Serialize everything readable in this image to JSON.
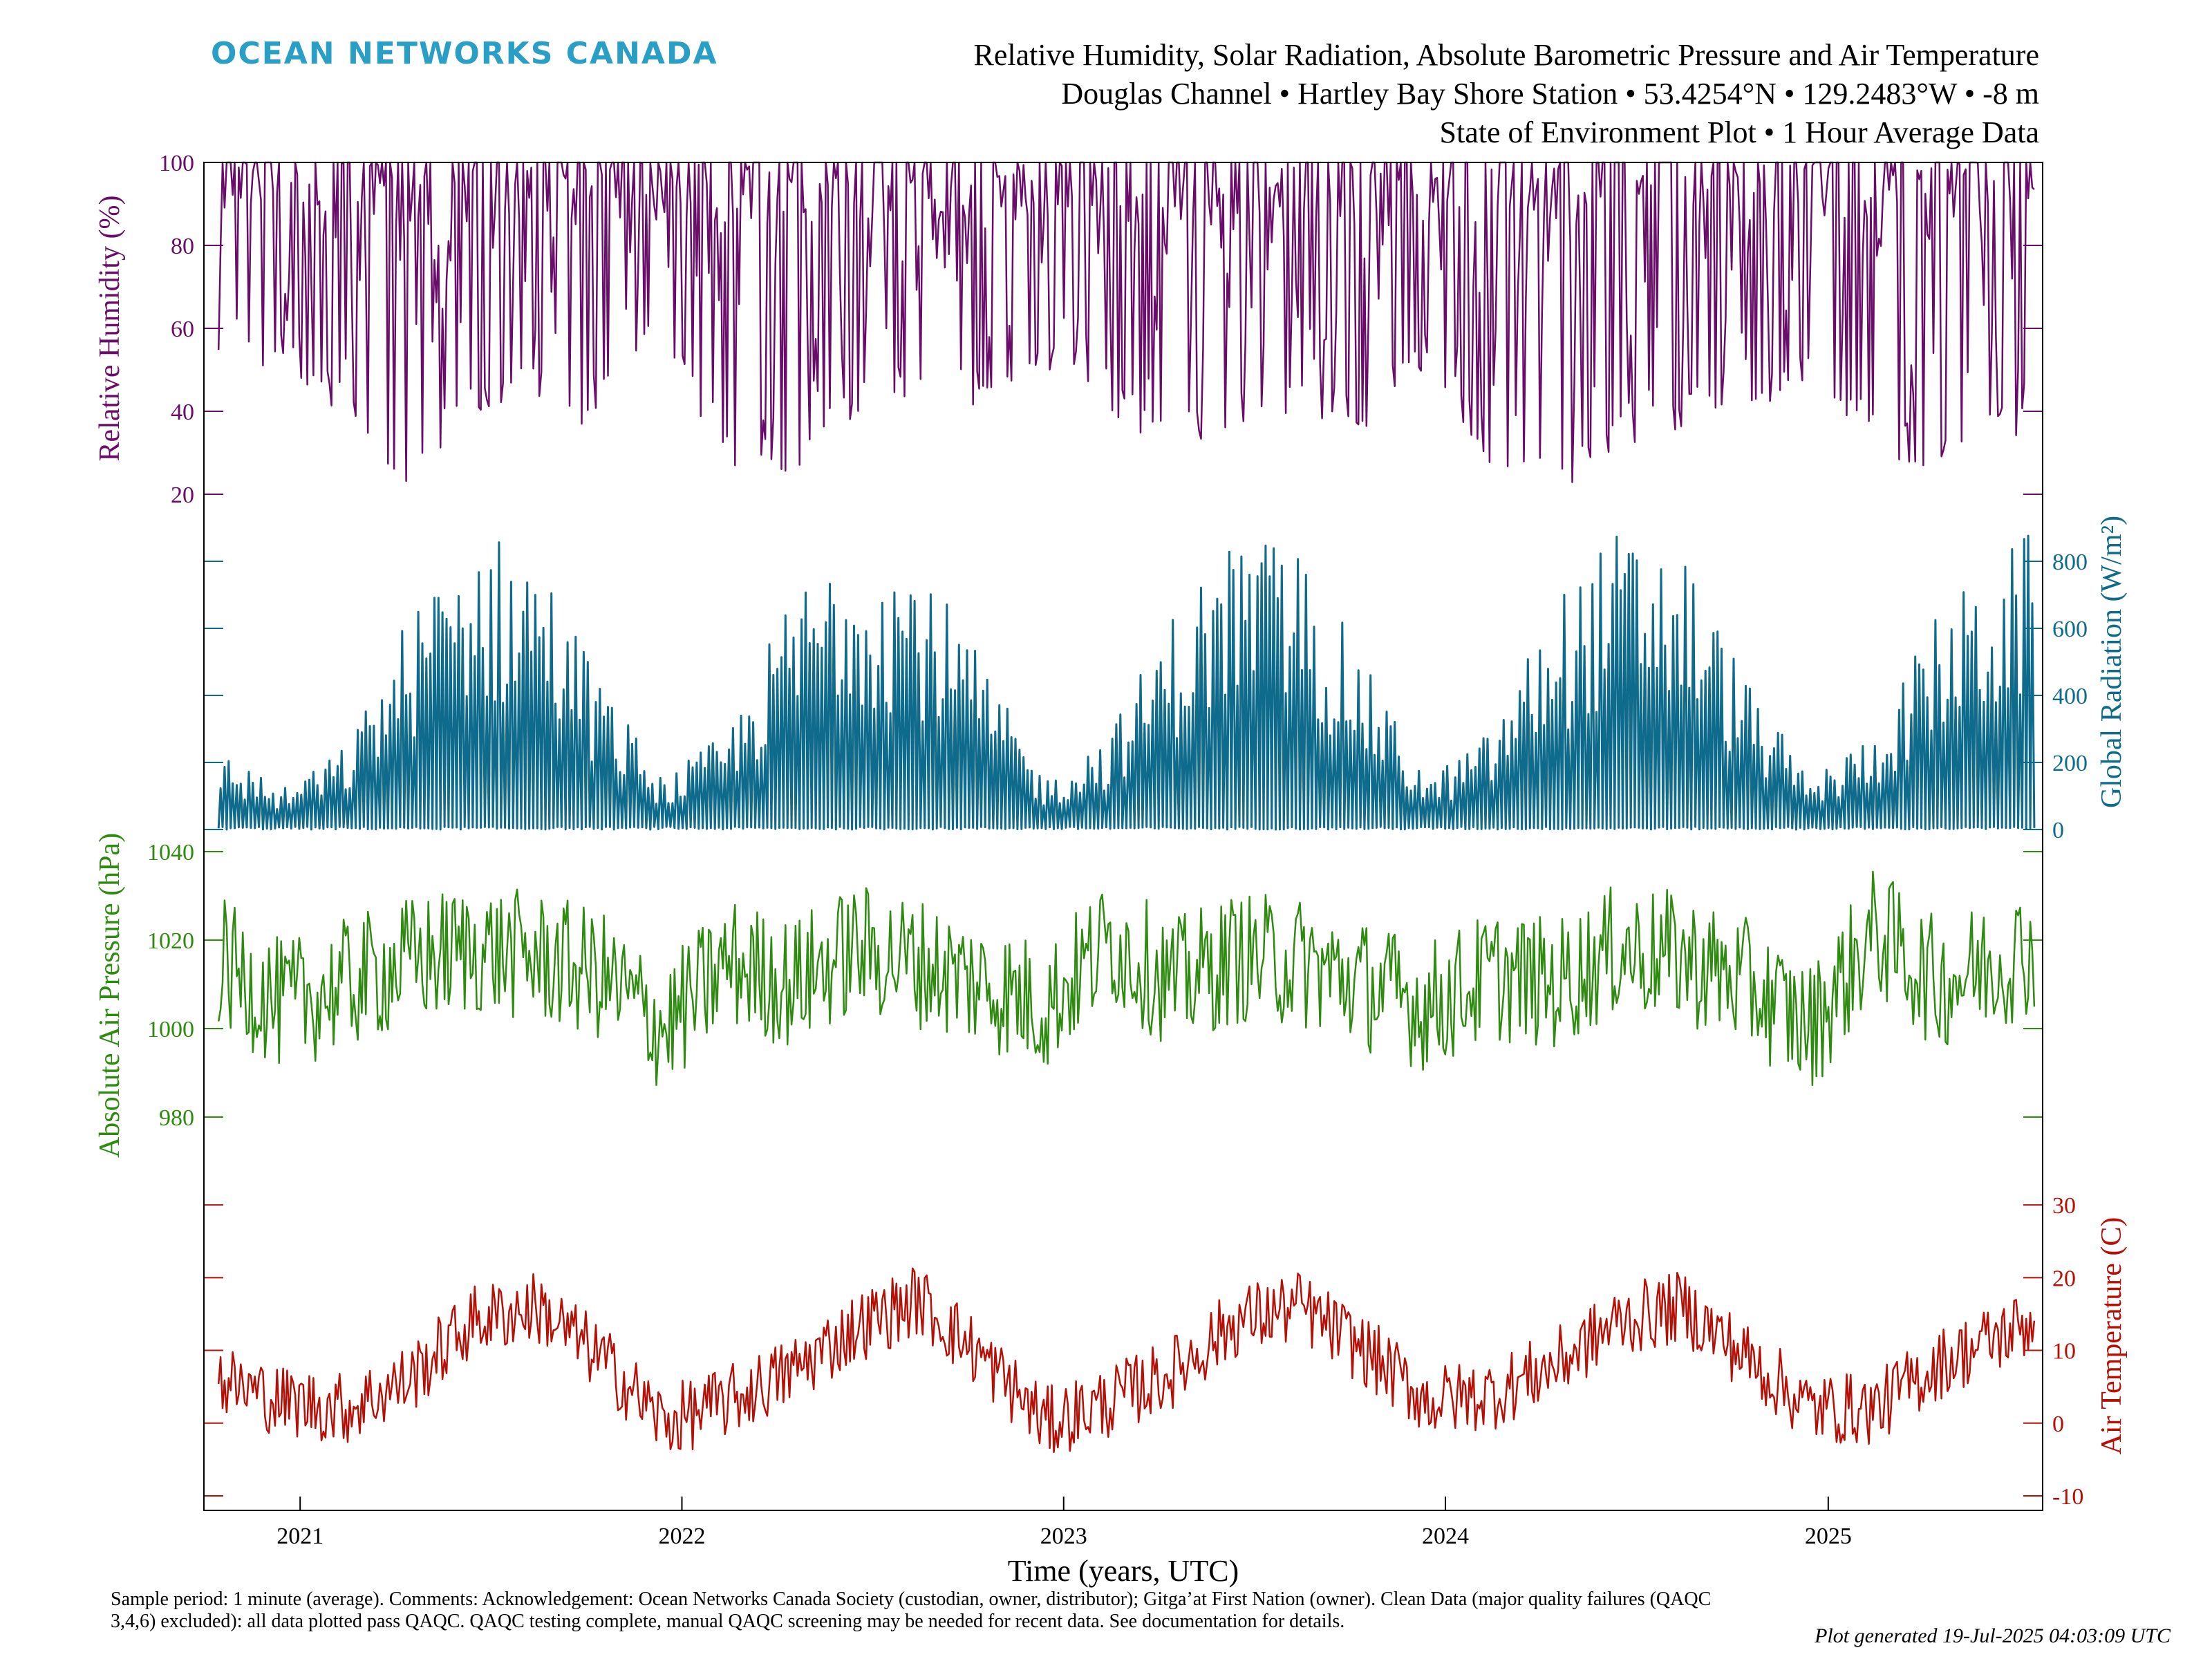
{
  "header": {
    "logo_text": "OCEAN NETWORKS CANADA",
    "title_line1": "Relative Humidity, Solar Radiation, Absolute Barometric Pressure and Air Temperature",
    "title_line2": "Douglas Channel • Hartley Bay Shore Station • 53.4254°N • 129.2483°W • -8 m",
    "title_line3": "State of Environment Plot • 1 Hour Average Data"
  },
  "footer": {
    "comment": "Sample period: 1 minute (average). Comments: Acknowledgement: Ocean Networks Canada Society (custodian, owner, distributor); Gitga’at First Nation (owner). Clean Data (major quality failures (QAQC 3,4,6) excluded): all data plotted pass QAQC. QAQC testing complete, manual QAQC screening may be needed for recent data. See documentation for details.",
    "generated": "Plot generated 19-Jul-2025 04:03:09 UTC"
  },
  "chart_data": [
    {
      "type": "line",
      "ylabel": "Relative Humidity (%)",
      "ylim": [
        20,
        100
      ],
      "yticks": [
        20,
        40,
        60,
        80,
        100
      ],
      "axis_side": "left",
      "color": "#6a0d6a",
      "x": [
        "2020-10-15",
        "2020-12-01",
        "2021-02-01",
        "2021-04-15",
        "2021-06-01",
        "2021-08-01",
        "2021-10-01",
        "2021-12-15",
        "2022-02-15",
        "2022-04-15",
        "2022-06-01",
        "2022-08-15",
        "2022-10-15",
        "2022-12-15",
        "2023-02-15",
        "2023-04-15",
        "2023-06-15",
        "2023-08-15",
        "2023-10-15",
        "2023-12-15",
        "2024-02-15",
        "2024-04-15",
        "2024-06-15",
        "2024-08-15",
        "2024-10-15",
        "2024-12-15",
        "2025-02-15",
        "2025-04-15",
        "2025-07-15"
      ],
      "y_min_envelope": [
        35,
        50,
        40,
        20,
        35,
        45,
        35,
        55,
        25,
        25,
        35,
        45,
        40,
        50,
        40,
        25,
        30,
        40,
        35,
        50,
        25,
        20,
        30,
        35,
        40,
        45,
        30,
        25,
        35
      ],
      "y_max": 100
    },
    {
      "type": "line",
      "ylabel": "Global Radiation (W/m²)",
      "ylim": [
        0,
        1000
      ],
      "yticks": [
        0,
        200,
        400,
        600,
        800
      ],
      "axis_side": "right",
      "color": "#0f6b8c",
      "x": [
        "2020-10-15",
        "2020-12-15",
        "2021-02-15",
        "2021-04-15",
        "2021-06-15",
        "2021-08-15",
        "2021-10-15",
        "2021-12-15",
        "2022-02-15",
        "2022-04-15",
        "2022-06-15",
        "2022-08-20",
        "2022-10-15",
        "2022-12-15",
        "2023-02-15",
        "2023-04-15",
        "2023-06-15",
        "2023-08-15",
        "2023-10-15",
        "2023-12-15",
        "2024-02-15",
        "2024-04-15",
        "2024-06-15",
        "2024-08-15",
        "2024-10-15",
        "2024-12-15",
        "2025-02-15",
        "2025-04-15",
        "2025-07-15"
      ],
      "y_peak_envelope": [
        250,
        120,
        250,
        650,
        900,
        850,
        450,
        150,
        300,
        700,
        930,
        800,
        500,
        150,
        300,
        650,
        900,
        850,
        500,
        150,
        300,
        700,
        900,
        850,
        450,
        150,
        300,
        650,
        900
      ]
    },
    {
      "type": "line",
      "ylabel": "Absolute Air Pressure (hPa)",
      "ylim": [
        970,
        1045
      ],
      "yticks": [
        980,
        1000,
        1020,
        1040
      ],
      "axis_side": "left",
      "color": "#2e8b0f",
      "x": [
        "2020-10-15",
        "2020-12-15",
        "2021-02-15",
        "2021-04-15",
        "2021-06-15",
        "2021-08-15",
        "2021-10-15",
        "2021-12-15",
        "2022-02-15",
        "2022-04-15",
        "2022-06-15",
        "2022-08-15",
        "2022-10-15",
        "2022-12-15",
        "2023-02-15",
        "2023-04-15",
        "2023-06-15",
        "2023-08-15",
        "2023-10-15",
        "2023-12-15",
        "2024-02-15",
        "2024-04-15",
        "2024-06-15",
        "2024-08-15",
        "2024-10-15",
        "2024-12-15",
        "2025-02-15",
        "2025-04-15",
        "2025-07-15"
      ],
      "y": [
        1015,
        1005,
        1010,
        1015,
        1018,
        1016,
        1012,
        1000,
        1015,
        1010,
        1018,
        1015,
        1010,
        1005,
        1020,
        1010,
        1016,
        1015,
        1010,
        1005,
        1012,
        1010,
        1018,
        1016,
        1010,
        1000,
        1022,
        1010,
        1018
      ]
    },
    {
      "type": "line",
      "ylabel": "Air Temperature (C)",
      "xlabel": "Time (years, UTC)",
      "ylim": [
        -12,
        36
      ],
      "yticks": [
        -10,
        0,
        10,
        20,
        30
      ],
      "axis_side": "right",
      "color": "#b50f06",
      "xticks": [
        "2021",
        "2022",
        "2023",
        "2024",
        "2025"
      ],
      "x": [
        "2020-10-15",
        "2020-12-15",
        "2021-02-15",
        "2021-04-15",
        "2021-06-15",
        "2021-08-15",
        "2021-10-15",
        "2021-12-15",
        "2022-02-15",
        "2022-04-15",
        "2022-06-15",
        "2022-08-15",
        "2022-10-15",
        "2022-12-15",
        "2023-02-15",
        "2023-04-15",
        "2023-06-15",
        "2023-08-15",
        "2023-10-15",
        "2023-12-15",
        "2024-02-15",
        "2024-04-15",
        "2024-06-15",
        "2024-08-15",
        "2024-10-15",
        "2024-12-15",
        "2025-02-15",
        "2025-04-15",
        "2025-07-15"
      ],
      "y": [
        6,
        3,
        2,
        6,
        14,
        16,
        9,
        0,
        3,
        7,
        13,
        17,
        9,
        0,
        3,
        7,
        14,
        16,
        10,
        3,
        4,
        8,
        14,
        16,
        9,
        2,
        2,
        8,
        14
      ]
    }
  ]
}
